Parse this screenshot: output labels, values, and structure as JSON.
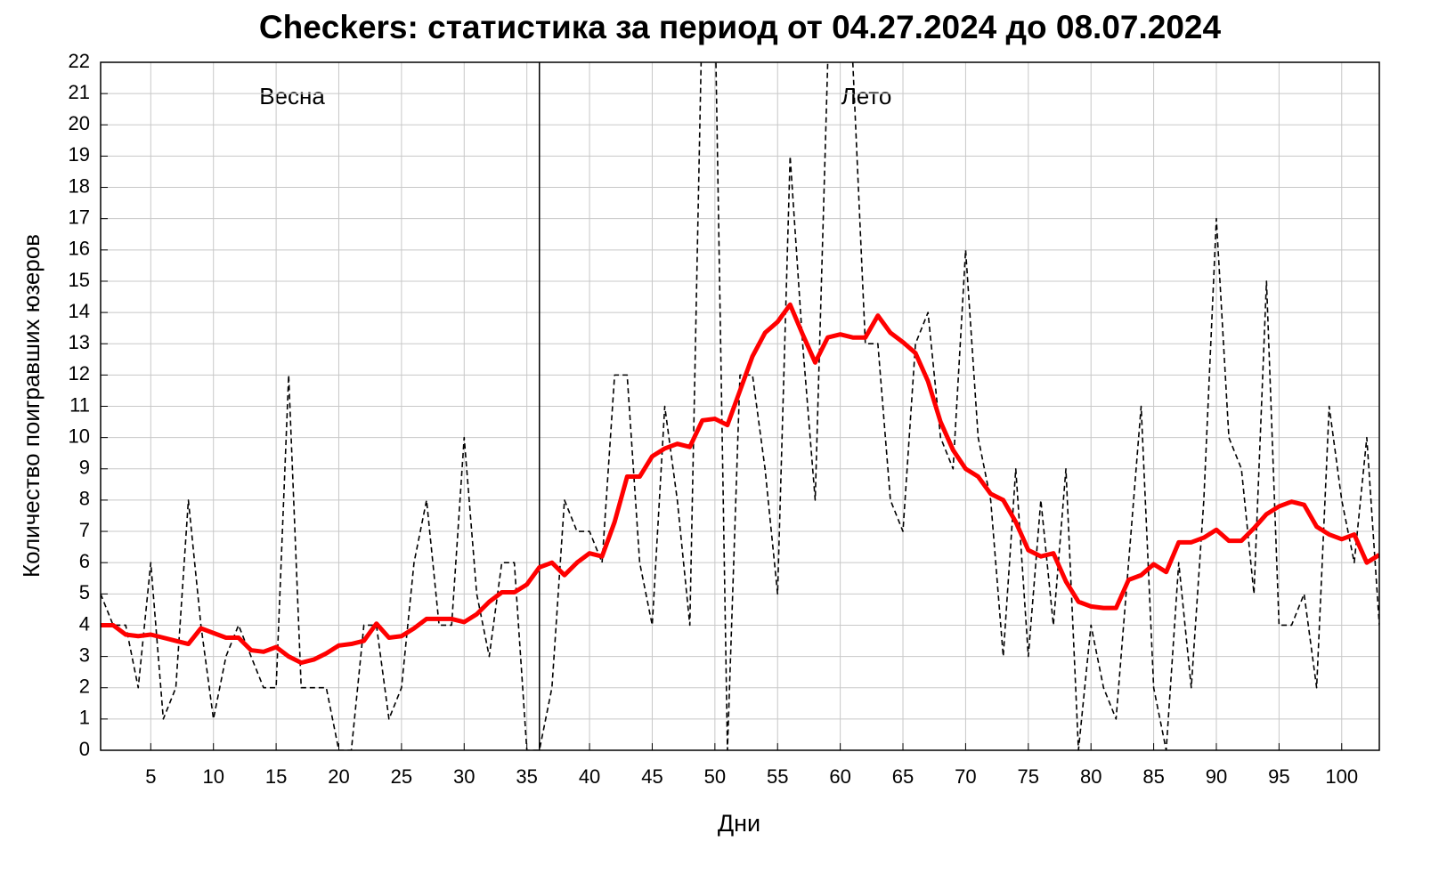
{
  "chart_data": {
    "type": "line",
    "title": "Checkers: статистика за период от 04.27.2024 до 08.07.2024",
    "xlabel": "Дни",
    "ylabel": "Количество поигравших юзеров",
    "annotations": [
      "Весна",
      "Лето"
    ],
    "divider_x": 36,
    "x": [
      1,
      2,
      3,
      4,
      5,
      6,
      7,
      8,
      9,
      10,
      11,
      12,
      13,
      14,
      15,
      16,
      17,
      18,
      19,
      20,
      21,
      22,
      23,
      24,
      25,
      26,
      27,
      28,
      29,
      30,
      31,
      32,
      33,
      34,
      35,
      36,
      37,
      38,
      39,
      40,
      41,
      42,
      43,
      44,
      45,
      46,
      47,
      48,
      49,
      50,
      51,
      52,
      53,
      54,
      55,
      56,
      57,
      58,
      59,
      60,
      61,
      62,
      63,
      64,
      65,
      66,
      67,
      68,
      69,
      70,
      71,
      72,
      73,
      74,
      75,
      76,
      77,
      78,
      79,
      80,
      81,
      82,
      83,
      84,
      85,
      86,
      87,
      88,
      89,
      90,
      91,
      92,
      93,
      94,
      95,
      96,
      97,
      98,
      99,
      100,
      101,
      102,
      103
    ],
    "series": [
      {
        "color": "#000000",
        "dashed": true,
        "width": 1.6,
        "values": [
          5,
          4,
          4,
          2,
          6,
          1,
          2,
          8,
          4,
          1,
          3,
          4,
          3,
          2,
          2,
          12,
          2,
          2,
          2,
          0,
          0,
          4,
          4,
          1,
          2,
          6,
          8,
          4,
          4,
          10,
          5,
          3,
          6,
          6,
          0,
          0,
          2,
          8,
          7,
          7,
          6,
          12,
          12,
          6,
          4,
          11,
          8,
          4,
          24,
          24,
          0,
          12,
          12,
          9,
          5,
          19,
          13,
          8,
          22,
          26,
          22,
          13,
          13,
          8,
          7,
          13,
          14,
          10,
          9,
          16,
          10,
          8,
          3,
          9,
          3,
          8,
          4,
          9,
          0,
          4,
          2,
          1,
          6,
          11,
          2,
          0,
          6,
          2,
          8,
          17,
          10,
          9,
          5,
          15,
          4,
          4,
          5,
          2,
          11,
          8,
          6,
          10,
          4
        ]
      },
      {
        "color": "#ff0000",
        "dashed": false,
        "width": 5,
        "values": [
          4,
          4,
          3.7,
          3.65,
          3.7,
          3.6,
          3.5,
          3.4,
          3.9,
          3.75,
          3.6,
          3.6,
          3.2,
          3.15,
          3.3,
          3.0,
          2.8,
          2.9,
          3.1,
          3.35,
          3.4,
          3.5,
          4.05,
          3.6,
          3.65,
          3.9,
          4.2,
          4.2,
          4.2,
          4.1,
          4.35,
          4.75,
          5.05,
          5.05,
          5.3,
          5.85,
          6.0,
          5.6,
          6.0,
          6.3,
          6.2,
          7.3,
          8.75,
          8.75,
          9.4,
          9.65,
          9.8,
          9.7,
          10.55,
          10.6,
          10.4,
          11.5,
          12.6,
          13.35,
          13.7,
          14.25,
          13.3,
          12.4,
          13.2,
          13.3,
          13.2,
          13.2,
          13.9,
          13.35,
          13.05,
          12.7,
          11.8,
          10.5,
          9.6,
          9.0,
          8.75,
          8.2,
          8.0,
          7.3,
          6.4,
          6.2,
          6.3,
          5.4,
          4.75,
          4.6,
          4.55,
          4.55,
          5.45,
          5.6,
          5.95,
          5.7,
          6.65,
          6.65,
          6.8,
          7.05,
          6.7,
          6.7,
          7.1,
          7.55,
          7.8,
          7.95,
          7.85,
          7.15,
          6.9,
          6.75,
          6.9,
          6.0,
          6.25
        ]
      }
    ],
    "xlim": [
      1,
      103
    ],
    "ylim": [
      0,
      22
    ],
    "xticks": [
      5,
      10,
      15,
      20,
      25,
      30,
      35,
      40,
      45,
      50,
      55,
      60,
      65,
      70,
      75,
      80,
      85,
      90,
      95,
      100
    ],
    "yticks": [
      0,
      1,
      2,
      3,
      4,
      5,
      6,
      7,
      8,
      9,
      10,
      11,
      12,
      13,
      14,
      15,
      16,
      17,
      18,
      19,
      20,
      21,
      22
    ],
    "grid": true
  }
}
